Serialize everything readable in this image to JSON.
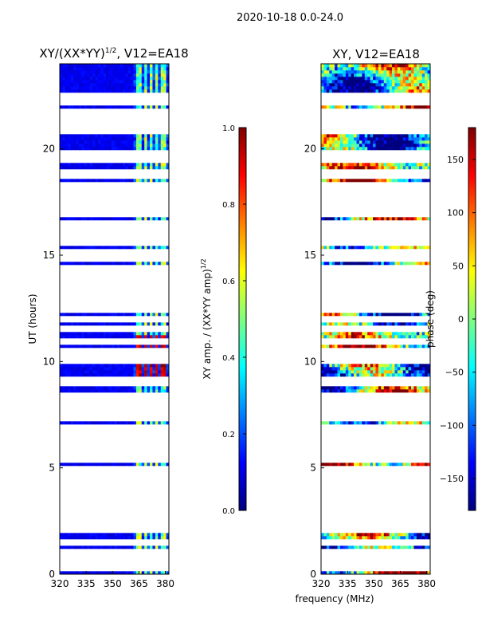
{
  "suptitle": "2020-10-18 0.0-24.0",
  "xlabel_shared": "frequency (MHz)",
  "colors": {
    "jet": [
      "#00007f",
      "#0000ff",
      "#007fff",
      "#00ffff",
      "#7fff7f",
      "#ffff00",
      "#ff7f00",
      "#ff0000",
      "#7f0000"
    ]
  },
  "chart_data": [
    {
      "type": "heatmap",
      "title": "XY/(XX*YY)^{1/2}, V12=EA18",
      "title_main": "XY/(XX*YY)",
      "title_sup": "1/2",
      "title_tail": ", V12=EA18",
      "xlabel": "",
      "ylabel": "UT (hours)",
      "xlim": [
        320,
        382
      ],
      "ylim": [
        0,
        24
      ],
      "xticks": [
        320,
        335,
        350,
        365,
        380
      ],
      "yticks": [
        0,
        5,
        10,
        15,
        20
      ],
      "bright_bands_mhz": [
        [
          363,
          366
        ],
        [
          368,
          369.5
        ],
        [
          371,
          373
        ],
        [
          374,
          375.5
        ],
        [
          378,
          380
        ]
      ],
      "strong_block_hours": [
        9.3,
        11.2
      ],
      "colorbar": {
        "label_main": "XY amp. / (XX*YY amp)",
        "label_sup": "1/2",
        "range": [
          0.0,
          1.0
        ],
        "ticks": [
          "0.0",
          "0.2",
          "0.4",
          "0.6",
          "0.8",
          "1.0"
        ]
      }
    },
    {
      "type": "heatmap",
      "title": "XY, V12=EA18",
      "xlabel": "frequency (MHz)",
      "ylabel": "",
      "xlim": [
        320,
        382
      ],
      "ylim": [
        0,
        24
      ],
      "xticks": [
        320,
        335,
        350,
        365,
        380
      ],
      "yticks": [
        0,
        5,
        10,
        15,
        20
      ],
      "colorbar": {
        "label": "phase (deg)",
        "range": [
          -180,
          180
        ],
        "ticks": [
          "−150",
          "−100",
          "−50",
          "0",
          "50",
          "100",
          "150"
        ]
      }
    }
  ],
  "flagged_hours": [
    0.35,
    0.5,
    0.7,
    1.1,
    1.45,
    2.05,
    2.2,
    2.5,
    2.85,
    3.05,
    3.3,
    3.6,
    3.9,
    4.15,
    4.5,
    4.8,
    5.0,
    5.45,
    5.6,
    5.85,
    6.15,
    6.35,
    6.6,
    6.95,
    7.3,
    7.65,
    7.85,
    8.1,
    8.45,
    9.0,
    9.2,
    10.0,
    10.25,
    10.5,
    11.0,
    11.5,
    12.0,
    12.4,
    12.55,
    12.9,
    13.2,
    13.5,
    13.85,
    14.0,
    14.25,
    14.4,
    14.8,
    14.95,
    15.1,
    15.6,
    15.85,
    16.2,
    16.5,
    16.9,
    17.2,
    17.55,
    17.8,
    18.15,
    18.35,
    18.75,
    18.9,
    19.45,
    19.85,
    20.85,
    21.0,
    21.15,
    21.35,
    21.55,
    21.75,
    22.25,
    22.55
  ]
}
